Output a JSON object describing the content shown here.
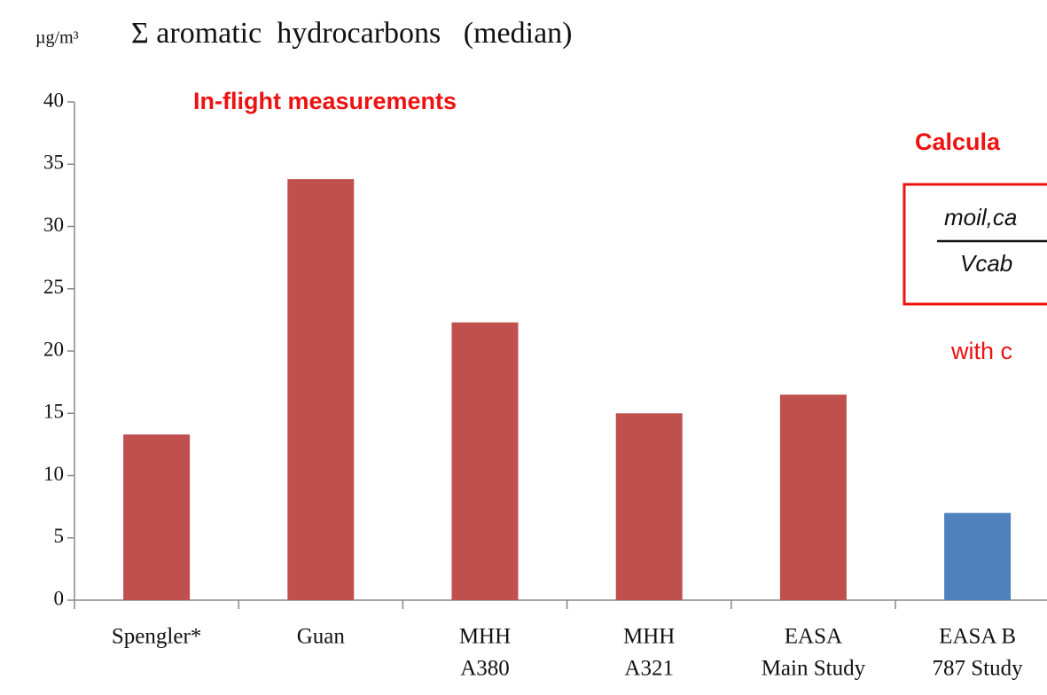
{
  "chart_data": {
    "type": "bar",
    "unit_label": "µg/m³",
    "title": "Σ aromatic  hydrocarbons   (median)",
    "categories": [
      [
        "Spengler*"
      ],
      [
        "Guan"
      ],
      [
        "MHH",
        "A380"
      ],
      [
        "MHH",
        "A321"
      ],
      [
        "EASA",
        "Main Study"
      ],
      [
        "EASA B",
        "787 Study"
      ]
    ],
    "values": [
      13.3,
      33.8,
      22.3,
      15.0,
      16.5,
      7.0
    ],
    "colors": [
      "#c0504d",
      "#c0504d",
      "#c0504d",
      "#c0504d",
      "#c0504d",
      "#4f81bd"
    ],
    "ylim": [
      0,
      40
    ],
    "yticks": [
      0,
      5,
      10,
      15,
      20,
      25,
      30,
      35,
      40
    ],
    "grid": false,
    "annotations": {
      "in_flight": "In-flight measurements",
      "calculated": "Calcula",
      "formula_numerator": "moil,ca",
      "formula_denominator": "Vcab",
      "with": "with c"
    }
  }
}
